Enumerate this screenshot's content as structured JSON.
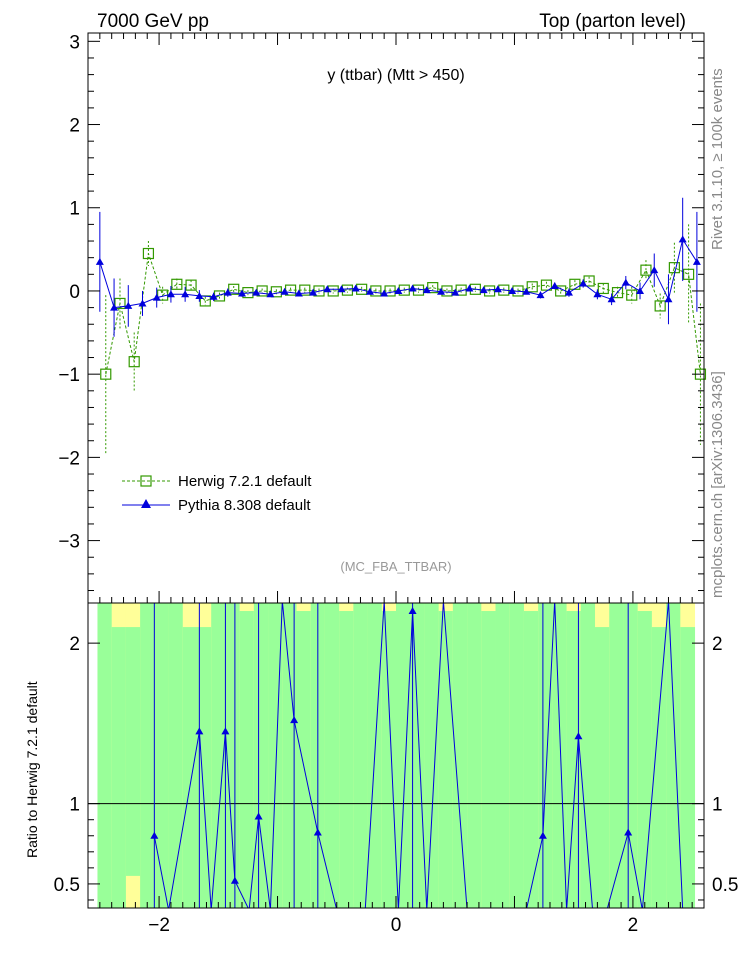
{
  "header": {
    "left": "7000 GeV pp",
    "right": "Top (parton level)"
  },
  "side_labels": {
    "rivet": "Rivet 3.1.10, ≥ 100k events",
    "mcplots": "mcplots.cern.ch [arXiv:1306.3436]"
  },
  "colors": {
    "herwig": "#339900",
    "pythia": "#0000dd",
    "band_inner": "#99ff99",
    "band_outer": "#ffff99"
  },
  "chart_data": [
    {
      "type": "scatter",
      "title": "y (ttbar) (Mtt > 450)",
      "analysis_tag": "(MC_FBA_TTBAR)",
      "xlim": [
        -2.6,
        2.6
      ],
      "ylim": [
        -3.75,
        3.1
      ],
      "yticks": [
        -3,
        -2,
        -1,
        0,
        1,
        2,
        3
      ],
      "grid": false,
      "legend_position": "lower-left",
      "series": [
        {
          "name": "Herwig 7.2.1 default",
          "marker": "open-square",
          "line": "dashed",
          "points": [
            [
              -2.45,
              -1.0,
              0.95
            ],
            [
              -2.33,
              -0.15,
              0.3
            ],
            [
              -2.21,
              -0.85,
              0.35
            ],
            [
              -2.09,
              0.45,
              0.15
            ],
            [
              -1.97,
              -0.05,
              0.1
            ],
            [
              -1.85,
              0.08,
              0.07
            ],
            [
              -1.73,
              0.07,
              0.06
            ],
            [
              -1.61,
              -0.12,
              0.05
            ],
            [
              -1.49,
              -0.06,
              0.04
            ],
            [
              -1.37,
              0.02,
              0.04
            ],
            [
              -1.25,
              -0.02,
              0.03
            ],
            [
              -1.13,
              0.0,
              0.03
            ],
            [
              -1.01,
              -0.01,
              0.03
            ],
            [
              -0.89,
              0.01,
              0.03
            ],
            [
              -0.77,
              0.01,
              0.03
            ],
            [
              -0.65,
              0.0,
              0.03
            ],
            [
              -0.53,
              0.0,
              0.03
            ],
            [
              -0.41,
              0.01,
              0.03
            ],
            [
              -0.29,
              0.02,
              0.03
            ],
            [
              -0.17,
              0.0,
              0.03
            ],
            [
              -0.05,
              0.0,
              0.03
            ],
            [
              0.07,
              0.01,
              0.03
            ],
            [
              0.19,
              0.01,
              0.03
            ],
            [
              0.31,
              0.04,
              0.03
            ],
            [
              0.43,
              0.0,
              0.03
            ],
            [
              0.55,
              0.01,
              0.03
            ],
            [
              0.67,
              0.02,
              0.03
            ],
            [
              0.79,
              0.0,
              0.03
            ],
            [
              0.91,
              0.01,
              0.03
            ],
            [
              1.03,
              0.0,
              0.03
            ],
            [
              1.15,
              0.05,
              0.04
            ],
            [
              1.27,
              0.07,
              0.04
            ],
            [
              1.39,
              0.0,
              0.04
            ],
            [
              1.51,
              0.08,
              0.05
            ],
            [
              1.63,
              0.12,
              0.05
            ],
            [
              1.75,
              0.03,
              0.06
            ],
            [
              1.87,
              -0.02,
              0.07
            ],
            [
              1.99,
              -0.05,
              0.1
            ],
            [
              2.11,
              0.25,
              0.12
            ],
            [
              2.23,
              -0.18,
              0.15
            ],
            [
              2.35,
              0.28,
              0.3
            ],
            [
              2.47,
              0.2,
              0.6
            ],
            [
              2.57,
              -1.0,
              0.85
            ]
          ]
        },
        {
          "name": "Pythia 8.308 default",
          "marker": "filled-triangle",
          "line": "solid",
          "points": [
            [
              -2.5,
              0.35,
              0.6
            ],
            [
              -2.38,
              -0.2,
              0.35
            ],
            [
              -2.26,
              -0.18,
              0.25
            ],
            [
              -2.14,
              -0.15,
              0.15
            ],
            [
              -2.02,
              -0.08,
              0.12
            ],
            [
              -1.9,
              -0.04,
              0.1
            ],
            [
              -1.78,
              -0.04,
              0.09
            ],
            [
              -1.66,
              -0.06,
              0.07
            ],
            [
              -1.54,
              -0.07,
              0.05
            ],
            [
              -1.42,
              -0.02,
              0.05
            ],
            [
              -1.3,
              -0.03,
              0.04
            ],
            [
              -1.18,
              -0.02,
              0.03
            ],
            [
              -1.06,
              -0.04,
              0.03
            ],
            [
              -0.94,
              -0.01,
              0.03
            ],
            [
              -0.82,
              -0.03,
              0.03
            ],
            [
              -0.7,
              -0.02,
              0.03
            ],
            [
              -0.58,
              0.02,
              0.03
            ],
            [
              -0.46,
              0.02,
              0.03
            ],
            [
              -0.34,
              0.03,
              0.03
            ],
            [
              -0.22,
              -0.01,
              0.03
            ],
            [
              -0.1,
              -0.03,
              0.03
            ],
            [
              0.02,
              0.0,
              0.03
            ],
            [
              0.14,
              0.03,
              0.03
            ],
            [
              0.26,
              0.01,
              0.03
            ],
            [
              0.38,
              -0.01,
              0.03
            ],
            [
              0.5,
              -0.02,
              0.03
            ],
            [
              0.62,
              0.03,
              0.03
            ],
            [
              0.74,
              0.01,
              0.03
            ],
            [
              0.86,
              0.02,
              0.03
            ],
            [
              0.98,
              0.0,
              0.03
            ],
            [
              1.1,
              -0.01,
              0.03
            ],
            [
              1.22,
              -0.05,
              0.04
            ],
            [
              1.34,
              0.06,
              0.04
            ],
            [
              1.46,
              -0.02,
              0.05
            ],
            [
              1.58,
              0.09,
              0.05
            ],
            [
              1.7,
              -0.04,
              0.06
            ],
            [
              1.82,
              -0.1,
              0.07
            ],
            [
              1.94,
              0.1,
              0.08
            ],
            [
              2.06,
              0.0,
              0.1
            ],
            [
              2.18,
              0.25,
              0.2
            ],
            [
              2.3,
              -0.1,
              0.3
            ],
            [
              2.42,
              0.62,
              0.5
            ],
            [
              2.54,
              0.35,
              0.6
            ]
          ]
        }
      ]
    },
    {
      "type": "line",
      "ylabel": "Ratio to Herwig 7.2.1 default",
      "xlim": [
        -2.6,
        2.6
      ],
      "ylim": [
        0.35,
        2.25
      ],
      "xticks": [
        -2,
        0,
        2
      ],
      "yticks": [
        0.5,
        1,
        2
      ],
      "reference_line": 1,
      "grid": false,
      "band_edges": [
        -2.52,
        -2.4,
        -2.28,
        -2.16,
        -2.04,
        -1.92,
        -1.8,
        -1.68,
        -1.56,
        -1.44,
        -1.32,
        -1.2,
        -1.08,
        -0.96,
        -0.84,
        -0.72,
        -0.6,
        -0.48,
        -0.36,
        -0.24,
        -0.12,
        0.0,
        0.12,
        0.24,
        0.36,
        0.48,
        0.6,
        0.72,
        0.84,
        0.96,
        1.08,
        1.2,
        1.32,
        1.44,
        1.56,
        1.68,
        1.8,
        1.92,
        2.04,
        2.16,
        2.28,
        2.4,
        2.52
      ],
      "band_inner": [
        [
          0.3,
          2.3
        ],
        [
          0.3,
          2.1
        ],
        [
          0.55,
          2.1
        ],
        [
          0.3,
          2.3
        ],
        [
          0.3,
          2.3
        ],
        [
          0.3,
          2.3
        ],
        [
          0.3,
          2.1
        ],
        [
          0.3,
          2.1
        ],
        [
          0.3,
          2.3
        ],
        [
          0.3,
          2.3
        ],
        [
          0.3,
          2.2
        ],
        [
          0.3,
          2.3
        ],
        [
          0.3,
          2.3
        ],
        [
          0.3,
          2.3
        ],
        [
          0.3,
          2.2
        ],
        [
          0.3,
          2.3
        ],
        [
          0.3,
          2.3
        ],
        [
          0.3,
          2.2
        ],
        [
          0.3,
          2.3
        ],
        [
          0.3,
          2.3
        ],
        [
          0.3,
          2.2
        ],
        [
          0.3,
          2.3
        ],
        [
          0.3,
          2.3
        ],
        [
          0.3,
          2.3
        ],
        [
          0.3,
          2.2
        ],
        [
          0.3,
          2.3
        ],
        [
          0.3,
          2.3
        ],
        [
          0.3,
          2.2
        ],
        [
          0.3,
          2.3
        ],
        [
          0.3,
          2.3
        ],
        [
          0.3,
          2.2
        ],
        [
          0.3,
          2.3
        ],
        [
          0.3,
          2.3
        ],
        [
          0.3,
          2.2
        ],
        [
          0.3,
          2.3
        ],
        [
          0.3,
          2.1
        ],
        [
          0.3,
          2.3
        ],
        [
          0.3,
          2.3
        ],
        [
          0.3,
          2.2
        ],
        [
          0.3,
          2.1
        ],
        [
          0.3,
          2.3
        ],
        [
          0.3,
          2.1
        ]
      ],
      "band_outer": [
        [
          0.3,
          2.3
        ],
        [
          0.3,
          2.3
        ],
        [
          0.3,
          2.3
        ],
        [
          0.3,
          2.3
        ],
        [
          0.3,
          2.3
        ],
        [
          0.3,
          2.3
        ],
        [
          0.3,
          2.3
        ],
        [
          0.3,
          2.3
        ],
        [
          0.3,
          2.3
        ],
        [
          0.3,
          2.3
        ],
        [
          0.3,
          2.3
        ],
        [
          0.3,
          2.3
        ],
        [
          0.3,
          2.3
        ],
        [
          0.3,
          2.3
        ],
        [
          0.3,
          2.3
        ],
        [
          0.3,
          2.3
        ],
        [
          0.3,
          2.3
        ],
        [
          0.3,
          2.3
        ],
        [
          0.3,
          2.3
        ],
        [
          0.3,
          2.3
        ],
        [
          0.3,
          2.3
        ],
        [
          0.3,
          2.3
        ],
        [
          0.3,
          2.3
        ],
        [
          0.3,
          2.3
        ],
        [
          0.3,
          2.3
        ],
        [
          0.3,
          2.3
        ],
        [
          0.3,
          2.3
        ],
        [
          0.3,
          2.3
        ],
        [
          0.3,
          2.3
        ],
        [
          0.3,
          2.3
        ],
        [
          0.3,
          2.3
        ],
        [
          0.3,
          2.3
        ],
        [
          0.3,
          2.3
        ],
        [
          0.3,
          2.3
        ],
        [
          0.3,
          2.3
        ],
        [
          0.3,
          2.3
        ],
        [
          0.3,
          2.3
        ],
        [
          0.3,
          2.3
        ],
        [
          0.3,
          2.3
        ],
        [
          0.3,
          2.3
        ],
        [
          0.3,
          2.3
        ],
        [
          0.3,
          2.3
        ]
      ],
      "series": [
        {
          "name": "Pythia 8.308 default",
          "points": [
            [
              -2.04,
              0.8
            ],
            [
              -1.92,
              0.3
            ],
            [
              -1.66,
              1.45
            ],
            [
              -1.56,
              0.3
            ],
            [
              -1.44,
              1.45
            ],
            [
              -1.36,
              0.52
            ],
            [
              -1.24,
              0.3
            ],
            [
              -1.16,
              0.92
            ],
            [
              -1.06,
              0.3
            ],
            [
              -0.96,
              2.3
            ],
            [
              -0.86,
              1.52
            ],
            [
              -0.66,
              0.82
            ],
            [
              -0.5,
              0.3
            ],
            [
              -0.26,
              0.3
            ],
            [
              -0.1,
              2.3
            ],
            [
              0.02,
              0.3
            ],
            [
              0.14,
              2.2
            ],
            [
              0.26,
              0.3
            ],
            [
              0.4,
              2.3
            ],
            [
              0.6,
              0.3
            ],
            [
              0.86,
              0.3
            ],
            [
              1.1,
              0.3
            ],
            [
              1.24,
              0.8
            ],
            [
              1.34,
              2.3
            ],
            [
              1.44,
              0.3
            ],
            [
              1.54,
              1.42
            ],
            [
              1.66,
              0.3
            ],
            [
              1.78,
              0.3
            ],
            [
              1.96,
              0.82
            ],
            [
              2.08,
              0.3
            ],
            [
              2.3,
              2.3
            ],
            [
              2.42,
              0.3
            ]
          ]
        }
      ]
    }
  ]
}
